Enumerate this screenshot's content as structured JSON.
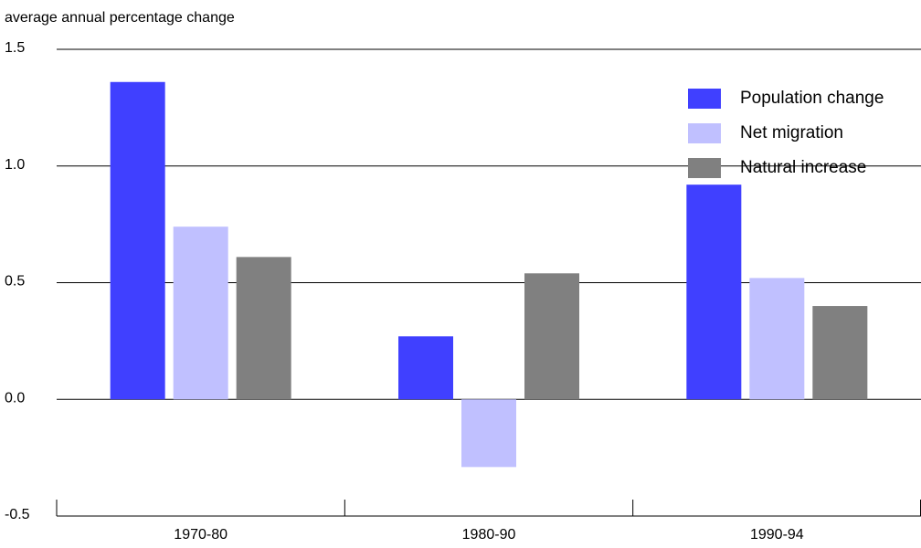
{
  "chart_data": {
    "type": "bar",
    "y_axis_title": "average annual percentage change",
    "categories": [
      "1970-80",
      "1980-90",
      "1990-94"
    ],
    "series": [
      {
        "name": "Population change",
        "color": "#4040ff",
        "values": [
          1.36,
          0.27,
          0.92
        ]
      },
      {
        "name": "Net migration",
        "color": "#c0c0ff",
        "values": [
          0.74,
          -0.29,
          0.52
        ]
      },
      {
        "name": "Natural increase",
        "color": "#808080",
        "values": [
          0.61,
          0.54,
          0.4
        ]
      }
    ],
    "ylim": [
      -0.5,
      1.5
    ],
    "yticks": [
      -0.5,
      {
        "value": 0,
        "label": "0.0"
      },
      0.5,
      {
        "value": 1,
        "label": "1.0"
      },
      1.5
    ],
    "grid": true,
    "legend": "top-right"
  }
}
